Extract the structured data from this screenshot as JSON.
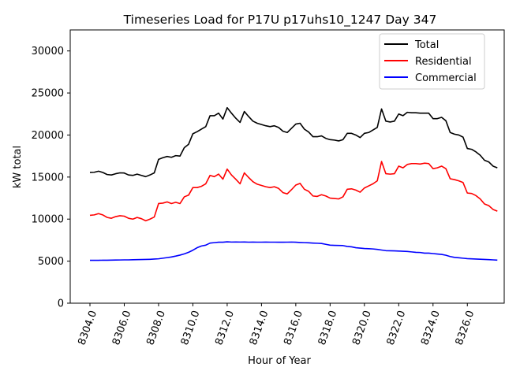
{
  "chart_data": {
    "type": "line",
    "title": "Timeseries Load for P17U p17uhs10_1247  Day 347",
    "xlabel": "Hour of Year",
    "ylabel": "kW total",
    "xlim": [
      8302.85,
      8328.15
    ],
    "ylim": [
      0,
      32500
    ],
    "x_start": 8304.0,
    "x_step": 0.25,
    "xticks": [
      8304,
      8306,
      8308,
      8310,
      8312,
      8314,
      8316,
      8318,
      8320,
      8322,
      8324,
      8326
    ],
    "xtick_labels": [
      "8304.0",
      "8306.0",
      "8308.0",
      "8310.0",
      "8312.0",
      "8314.0",
      "8316.0",
      "8318.0",
      "8320.0",
      "8322.0",
      "8324.0",
      "8326.0"
    ],
    "yticks": [
      0,
      5000,
      10000,
      15000,
      20000,
      25000,
      30000
    ],
    "ytick_labels": [
      "0",
      "5000",
      "10000",
      "15000",
      "20000",
      "25000",
      "30000"
    ],
    "legend_position": "top-right",
    "series": [
      {
        "name": "Total",
        "color": "#000000",
        "values": [
          15550,
          15570,
          15700,
          15550,
          15300,
          15250,
          15400,
          15500,
          15480,
          15250,
          15200,
          15350,
          15200,
          15050,
          15250,
          15500,
          17100,
          17300,
          17450,
          17350,
          17550,
          17500,
          18500,
          18900,
          20150,
          20400,
          20700,
          21000,
          22300,
          22300,
          22600,
          21900,
          23250,
          22600,
          22000,
          21500,
          22800,
          22200,
          21650,
          21400,
          21250,
          21100,
          21000,
          21100,
          20900,
          20450,
          20300,
          20800,
          21300,
          21400,
          20700,
          20350,
          19800,
          19800,
          19900,
          19600,
          19450,
          19400,
          19300,
          19450,
          20200,
          20200,
          20000,
          19700,
          20200,
          20300,
          20600,
          20900,
          23100,
          21650,
          21550,
          21650,
          22500,
          22300,
          22700,
          22650,
          22650,
          22600,
          22600,
          22600,
          21950,
          21950,
          22100,
          21700,
          20300,
          20100,
          20000,
          19750,
          18400,
          18300,
          18000,
          17600,
          17000,
          16800,
          16300,
          16100
        ]
      },
      {
        "name": "Residential",
        "color": "#ff0000",
        "values": [
          10450,
          10500,
          10650,
          10500,
          10200,
          10100,
          10300,
          10400,
          10350,
          10100,
          10000,
          10200,
          10050,
          9800,
          10000,
          10250,
          11850,
          11900,
          12050,
          11850,
          12000,
          11850,
          12650,
          12850,
          13750,
          13750,
          13900,
          14200,
          15200,
          15050,
          15350,
          14750,
          15950,
          15250,
          14750,
          14200,
          15500,
          14950,
          14450,
          14150,
          14000,
          13850,
          13750,
          13850,
          13650,
          13150,
          13000,
          13500,
          14050,
          14250,
          13550,
          13300,
          12750,
          12700,
          12900,
          12750,
          12500,
          12450,
          12400,
          12650,
          13550,
          13600,
          13450,
          13200,
          13700,
          13950,
          14200,
          14550,
          16850,
          15400,
          15350,
          15400,
          16300,
          16100,
          16500,
          16600,
          16600,
          16550,
          16650,
          16600,
          16000,
          16100,
          16300,
          16000,
          14800,
          14700,
          14550,
          14350,
          13100,
          13050,
          12800,
          12400,
          11800,
          11600,
          11150,
          10950
        ]
      },
      {
        "name": "Commercial",
        "color": "#0000ff",
        "values": [
          5100,
          5100,
          5100,
          5110,
          5110,
          5120,
          5130,
          5140,
          5150,
          5150,
          5170,
          5180,
          5190,
          5200,
          5220,
          5250,
          5280,
          5350,
          5420,
          5500,
          5600,
          5720,
          5870,
          6050,
          6300,
          6600,
          6800,
          6900,
          7150,
          7200,
          7250,
          7250,
          7300,
          7270,
          7280,
          7270,
          7280,
          7260,
          7270,
          7260,
          7260,
          7270,
          7260,
          7260,
          7250,
          7250,
          7260,
          7270,
          7250,
          7220,
          7200,
          7180,
          7150,
          7130,
          7100,
          7000,
          6900,
          6880,
          6870,
          6850,
          6750,
          6700,
          6600,
          6550,
          6500,
          6480,
          6450,
          6400,
          6320,
          6250,
          6230,
          6220,
          6200,
          6180,
          6150,
          6100,
          6050,
          6030,
          5950,
          5950,
          5900,
          5850,
          5800,
          5700,
          5550,
          5450,
          5400,
          5350,
          5300,
          5270,
          5250,
          5230,
          5200,
          5180,
          5150,
          5120
        ]
      }
    ]
  }
}
